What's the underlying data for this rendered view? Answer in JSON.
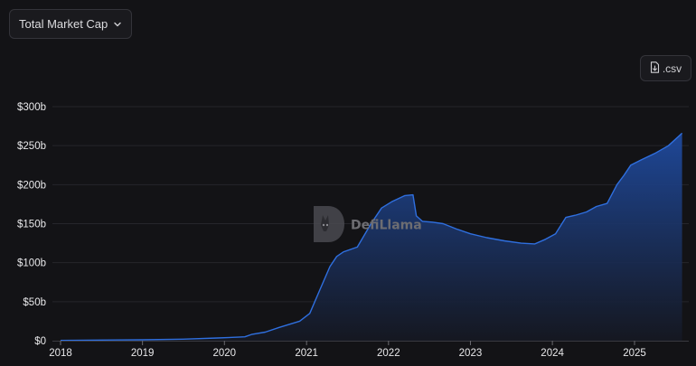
{
  "metric_selector": {
    "selected": "Total Market Cap",
    "icon": "chevron-down-icon"
  },
  "csv_button": {
    "label": ".csv",
    "icon": "file-download-icon"
  },
  "watermark": {
    "text": "DefiLlama"
  },
  "colors": {
    "line": "#2f6fdf",
    "fill_top": "#1f4a9e",
    "fill_bottom": "#151822",
    "background": "#131316",
    "grid": "#26262b"
  },
  "chart_data": {
    "type": "area",
    "title": "",
    "xlabel": "",
    "ylabel": "",
    "x_ticks": [
      "2018",
      "2019",
      "2020",
      "2021",
      "2022",
      "2023",
      "2024",
      "2025"
    ],
    "y_ticks": [
      "$0",
      "$50b",
      "$100b",
      "$150b",
      "$200b",
      "$250b",
      "$300b"
    ],
    "ylim": [
      0,
      300
    ],
    "y_unit": "billion USD",
    "grid": "horizontal",
    "series": [
      {
        "name": "Total Market Cap",
        "x": [
          "2018-01-01",
          "2018-07-01",
          "2019-01-01",
          "2019-07-01",
          "2019-12-01",
          "2020-03-01",
          "2020-04-01",
          "2020-05-01",
          "2020-07-01",
          "2020-09-01",
          "2020-12-01",
          "2021-01-15",
          "2021-03-01",
          "2021-04-15",
          "2021-05-15",
          "2021-06-15",
          "2021-08-15",
          "2021-10-15",
          "2021-12-01",
          "2022-01-15",
          "2022-03-15",
          "2022-04-20",
          "2022-05-05",
          "2022-06-01",
          "2022-07-15",
          "2022-09-01",
          "2022-11-01",
          "2023-01-01",
          "2023-03-15",
          "2023-06-01",
          "2023-08-15",
          "2023-10-15",
          "2023-12-01",
          "2024-01-15",
          "2024-03-01",
          "2024-04-15",
          "2024-06-01",
          "2024-07-15",
          "2024-09-01",
          "2024-10-15",
          "2024-11-15",
          "2024-12-15",
          "2025-02-01",
          "2025-04-01",
          "2025-06-01",
          "2025-08-01"
        ],
        "y": [
          0.3,
          0.8,
          1.2,
          2.0,
          3.5,
          4.5,
          5.0,
          8.0,
          11.0,
          17.0,
          25.0,
          35.0,
          65.0,
          95.0,
          108.0,
          114.0,
          120.0,
          150.0,
          170.0,
          178.0,
          186.0,
          187.0,
          160.0,
          153.0,
          152.0,
          150.0,
          143.0,
          137.0,
          132.0,
          128.0,
          125.0,
          124.0,
          130.0,
          137.0,
          158.0,
          161.0,
          165.0,
          172.0,
          176.0,
          200.0,
          212.0,
          225.0,
          232.0,
          240.0,
          250.0,
          266.0
        ]
      }
    ]
  }
}
